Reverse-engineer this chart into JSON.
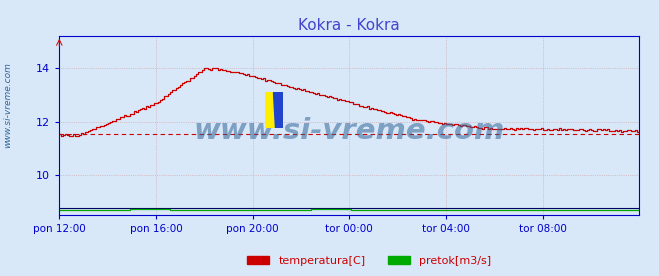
{
  "title": "Kokra - Kokra",
  "title_color": "#4444cc",
  "title_fontsize": 11,
  "bg_color": "#d8e8f8",
  "plot_bg_color": "#d8e8f8",
  "yticks_temp": [
    10,
    12,
    14
  ],
  "xtick_labels": [
    "pon 12:00",
    "pon 16:00",
    "pon 20:00",
    "tor 00:00",
    "tor 04:00",
    "tor 08:00"
  ],
  "xtick_positions": [
    0,
    48,
    96,
    144,
    192,
    240
  ],
  "grid_color": "#cc8888",
  "axis_color": "#0000cc",
  "tick_color": "#0000cc",
  "avg_line_value": 11.55,
  "watermark_text": "www.si-vreme.com",
  "watermark_color": "#336699",
  "legend_temp_label": "temperatura[C]",
  "legend_flow_label": "pretok[m3/s]",
  "ylabel_text": "www.si-vreme.com",
  "ylabel_color": "#336699",
  "n_points": 289,
  "xlim": [
    0,
    288
  ],
  "ylim": [
    8.5,
    15.2
  ]
}
